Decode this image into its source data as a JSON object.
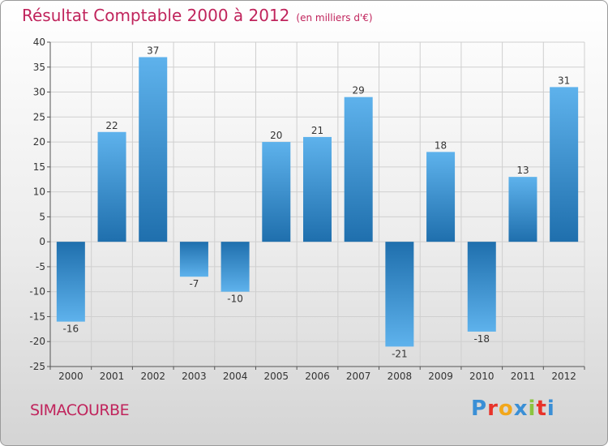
{
  "title": "Résultat Comptable 2000 à 2012",
  "subtitle": "(en milliers d'€)",
  "commune": "SIMACOURBE",
  "logo": {
    "text": "Proxiti",
    "colors": [
      "#3a8fd6",
      "#e8332a",
      "#f2a71b",
      "#3a8fd6",
      "#8bc43f",
      "#e8332a",
      "#3a8fd6"
    ]
  },
  "chart_data": {
    "type": "bar",
    "title": "Résultat Comptable 2000 à 2012",
    "subtitle": "(en milliers d'€)",
    "categories": [
      "2000",
      "2001",
      "2002",
      "2003",
      "2004",
      "2005",
      "2006",
      "2007",
      "2008",
      "2009",
      "2010",
      "2011",
      "2012"
    ],
    "values": [
      -16,
      22,
      37,
      -7,
      -10,
      20,
      21,
      29,
      -21,
      18,
      -18,
      13,
      31
    ],
    "value_labels": [
      "-16",
      "22",
      "37",
      "-7",
      "-10",
      "20",
      "21",
      "29",
      "-21",
      "18",
      "-18",
      "13",
      "31"
    ],
    "ylim": [
      -25,
      40
    ],
    "yticks": [
      40,
      35,
      30,
      25,
      20,
      15,
      10,
      5,
      0,
      -5,
      -10,
      -15,
      -20,
      -25
    ],
    "ytick_labels": [
      "40",
      "35",
      "30",
      "25",
      "20",
      "15",
      "10",
      "5",
      "0",
      "-5",
      "-10",
      "-15",
      "-20",
      "-25"
    ],
    "grid": true,
    "bar_color_light": "#5eb2ec",
    "bar_color_dark": "#1f6fad",
    "xlabel": "",
    "ylabel": ""
  }
}
